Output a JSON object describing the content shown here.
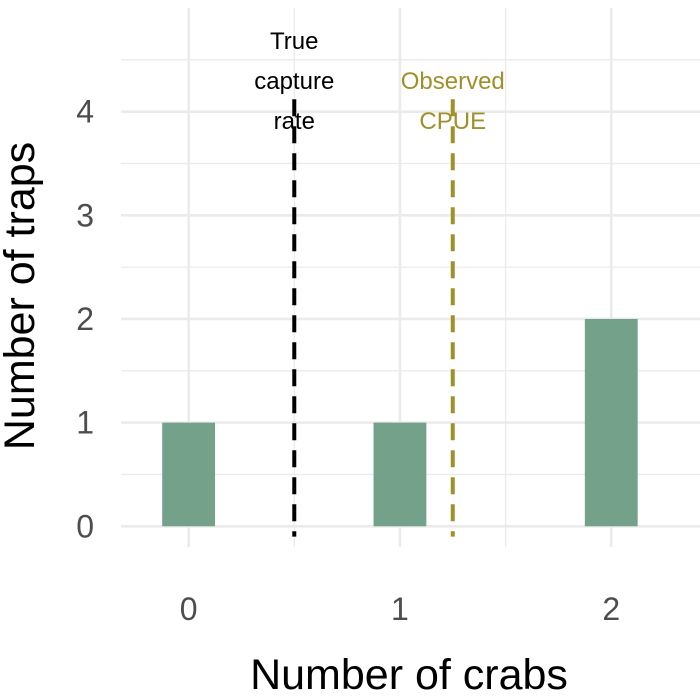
{
  "chart_data": {
    "type": "bar",
    "categories": [
      "0",
      "1",
      "2"
    ],
    "x": [
      0,
      1,
      2
    ],
    "values": [
      1,
      1,
      2
    ],
    "xlabel": "Number of crabs",
    "ylabel": "Number of traps",
    "xlim": [
      -0.32,
      2.42
    ],
    "ylim": [
      -0.2,
      5
    ],
    "yticks": [
      0,
      1,
      2,
      3,
      4
    ],
    "bar_width": 0.25,
    "bar_color": "#73a189",
    "grid": true,
    "reference_lines": [
      {
        "x": 0.5,
        "label": [
          "True",
          "capture",
          "rate"
        ],
        "color": "#000000",
        "style": "dashed"
      },
      {
        "x": 1.25,
        "label": [
          "Observed",
          "CPUE"
        ],
        "color": "#a0902c",
        "style": "dashed"
      }
    ]
  }
}
